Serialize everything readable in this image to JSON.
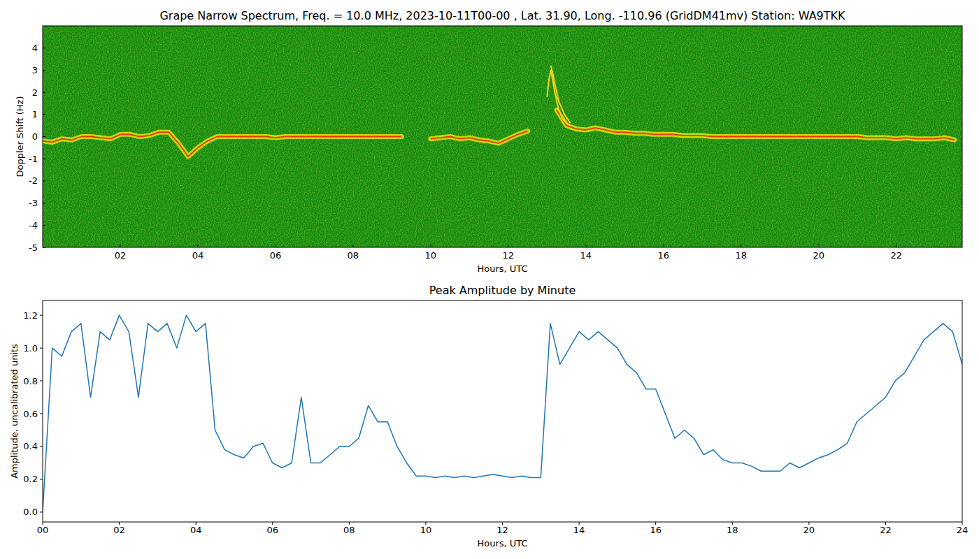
{
  "chart_data": [
    {
      "type": "spectrogram",
      "title": "Grape Narrow Spectrum, Freq. = 10.0 MHz, 2023-10-11T00-00 , Lat.  31.90, Long. -110.96 (GridDM41mv) Station: WA9TKK",
      "x_label": "Hours, UTC",
      "y_label": "Doppler Shift (Hz)",
      "xlim": [
        0,
        23.7
      ],
      "ylim": [
        -5,
        5
      ],
      "xticks": [
        {
          "value": 2,
          "label": "02"
        },
        {
          "value": 4,
          "label": "04"
        },
        {
          "value": 6,
          "label": "06"
        },
        {
          "value": 8,
          "label": "08"
        },
        {
          "value": 10,
          "label": "10"
        },
        {
          "value": 12,
          "label": "12"
        },
        {
          "value": 14,
          "label": "14"
        },
        {
          "value": 16,
          "label": "16"
        },
        {
          "value": 18,
          "label": "18"
        },
        {
          "value": 20,
          "label": "20"
        },
        {
          "value": 22,
          "label": "22"
        }
      ],
      "yticks": [
        -5,
        -4,
        -3,
        -2,
        -1,
        0,
        1,
        2,
        3,
        4
      ],
      "series": [
        {
          "color": "#e8341a",
          "x": [
            0,
            0.25,
            0.5,
            0.75,
            1,
            1.25,
            1.5,
            1.75,
            2,
            2.25,
            2.5,
            2.75,
            3,
            3.25,
            3.5,
            3.75,
            4,
            4.25,
            4.5,
            4.75,
            5,
            5.25,
            5.5,
            5.75,
            6,
            6.25,
            6.5,
            6.75,
            7,
            7.25,
            7.5,
            7.75,
            8,
            8.25,
            8.5,
            8.75,
            9,
            9.25,
            9.5,
            9.75,
            10,
            10.25,
            10.5,
            10.75,
            11,
            11.25,
            11.5,
            11.75,
            12,
            12.25,
            12.5,
            12.75,
            13,
            13.25,
            13.5,
            13.75,
            14,
            14.25,
            14.5,
            14.75,
            15,
            15.25,
            15.5,
            15.75,
            16,
            16.25,
            16.5,
            16.75,
            17,
            17.25,
            17.5,
            17.75,
            18,
            18.25,
            18.5,
            18.75,
            19,
            19.25,
            19.5,
            19.75,
            20,
            20.25,
            20.5,
            20.75,
            21,
            21.25,
            21.5,
            21.75,
            22,
            22.25,
            22.5,
            22.75,
            23,
            23.25,
            23.5
          ],
          "values": [
            -0.2,
            -0.25,
            -0.1,
            -0.15,
            0,
            0,
            -0.05,
            -0.1,
            0.1,
            0.1,
            0,
            0.05,
            0.2,
            0.2,
            -0.3,
            -0.9,
            -0.5,
            -0.2,
            0,
            0,
            0,
            0,
            0,
            0,
            -0.05,
            0,
            0,
            0,
            0,
            0,
            0,
            0,
            0,
            0,
            0,
            0,
            0,
            0,
            null,
            null,
            -0.1,
            -0.05,
            0,
            -0.1,
            -0.05,
            -0.15,
            -0.2,
            -0.3,
            -0.1,
            0.1,
            0.25,
            null,
            null,
            1.2,
            0.5,
            0.35,
            0.3,
            0.4,
            0.3,
            0.2,
            0.2,
            0.15,
            0.15,
            0.1,
            0.1,
            0.1,
            0.05,
            0.05,
            0.05,
            0,
            0,
            0,
            0,
            0,
            0,
            0,
            0,
            0,
            0,
            0,
            0,
            0,
            0,
            0,
            0,
            -0.05,
            -0.05,
            -0.05,
            -0.1,
            -0.05,
            -0.1,
            -0.1,
            -0.1,
            -0.05,
            -0.15
          ]
        },
        {
          "color": "#ffd21a",
          "x": [
            13.0,
            13.05,
            13.1,
            13.2,
            13.3,
            13.4,
            13.5,
            13.6
          ],
          "values": [
            1.8,
            2.6,
            3.0,
            2.0,
            1.2,
            0.8,
            0.6,
            0.5
          ]
        },
        {
          "color": "#ffd21a",
          "x": [
            13.1,
            13.2,
            13.3,
            13.45,
            13.6
          ],
          "values": [
            3.2,
            2.4,
            1.6,
            1.0,
            0.6
          ]
        }
      ]
    },
    {
      "type": "line",
      "title": "Peak Amplitude by Minute",
      "x_label": "Hours, UTC",
      "y_label": "Amplitude, uncalibrated units",
      "xlim": [
        0,
        24
      ],
      "ylim": [
        -0.06,
        1.29
      ],
      "xticks": [
        {
          "value": 0,
          "label": "00"
        },
        {
          "value": 2,
          "label": "02"
        },
        {
          "value": 4,
          "label": "04"
        },
        {
          "value": 6,
          "label": "06"
        },
        {
          "value": 8,
          "label": "08"
        },
        {
          "value": 10,
          "label": "10"
        },
        {
          "value": 12,
          "label": "12"
        },
        {
          "value": 14,
          "label": "14"
        },
        {
          "value": 16,
          "label": "16"
        },
        {
          "value": 18,
          "label": "18"
        },
        {
          "value": 20,
          "label": "20"
        },
        {
          "value": 22,
          "label": "22"
        },
        {
          "value": 24,
          "label": "24"
        }
      ],
      "yticks": [
        {
          "value": 0,
          "label": "0.0"
        },
        {
          "value": 0.2,
          "label": "0.2"
        },
        {
          "value": 0.4,
          "label": "0.4"
        },
        {
          "value": 0.6,
          "label": "0.6"
        },
        {
          "value": 0.8,
          "label": "0.8"
        },
        {
          "value": 1.0,
          "label": "1.0"
        },
        {
          "value": 1.2,
          "label": "1.2"
        }
      ],
      "x": [
        0,
        0.25,
        0.5,
        0.75,
        1,
        1.25,
        1.5,
        1.75,
        2,
        2.25,
        2.5,
        2.75,
        3,
        3.25,
        3.5,
        3.75,
        4,
        4.25,
        4.5,
        4.75,
        5,
        5.25,
        5.5,
        5.75,
        6,
        6.25,
        6.5,
        6.75,
        7,
        7.25,
        7.5,
        7.75,
        8,
        8.25,
        8.5,
        8.75,
        9,
        9.25,
        9.5,
        9.75,
        10,
        10.25,
        10.5,
        10.75,
        11,
        11.25,
        11.5,
        11.75,
        12,
        12.25,
        12.5,
        12.75,
        13,
        13.25,
        13.5,
        13.75,
        14,
        14.25,
        14.5,
        14.75,
        15,
        15.25,
        15.5,
        15.75,
        16,
        16.25,
        16.5,
        16.75,
        17,
        17.25,
        17.5,
        17.75,
        18,
        18.25,
        18.5,
        18.75,
        19,
        19.25,
        19.5,
        19.75,
        20,
        20.25,
        20.5,
        20.75,
        21,
        21.25,
        21.5,
        21.75,
        22,
        22.25,
        22.5,
        22.75,
        23,
        23.25,
        23.5,
        23.75,
        24
      ],
      "series": [
        {
          "color": "#1f77b4",
          "values": [
            0.0,
            1.0,
            0.95,
            1.1,
            1.15,
            0.7,
            1.1,
            1.05,
            1.2,
            1.1,
            0.7,
            1.15,
            1.1,
            1.15,
            1.0,
            1.2,
            1.1,
            1.15,
            0.5,
            0.38,
            0.35,
            0.33,
            0.4,
            0.42,
            0.3,
            0.27,
            0.3,
            0.7,
            0.3,
            0.3,
            0.35,
            0.4,
            0.4,
            0.45,
            0.65,
            0.55,
            0.55,
            0.4,
            0.3,
            0.22,
            0.22,
            0.21,
            0.22,
            0.21,
            0.22,
            0.21,
            0.22,
            0.23,
            0.22,
            0.21,
            0.22,
            0.21,
            0.21,
            1.15,
            0.9,
            1.0,
            1.1,
            1.05,
            1.1,
            1.05,
            1.0,
            0.9,
            0.85,
            0.75,
            0.75,
            0.6,
            0.45,
            0.5,
            0.45,
            0.35,
            0.38,
            0.32,
            0.3,
            0.3,
            0.28,
            0.25,
            0.25,
            0.25,
            0.3,
            0.27,
            0.3,
            0.33,
            0.35,
            0.38,
            0.42,
            0.55,
            0.6,
            0.65,
            0.7,
            0.8,
            0.85,
            0.95,
            1.05,
            1.1,
            1.15,
            1.1,
            0.9
          ]
        }
      ]
    }
  ]
}
